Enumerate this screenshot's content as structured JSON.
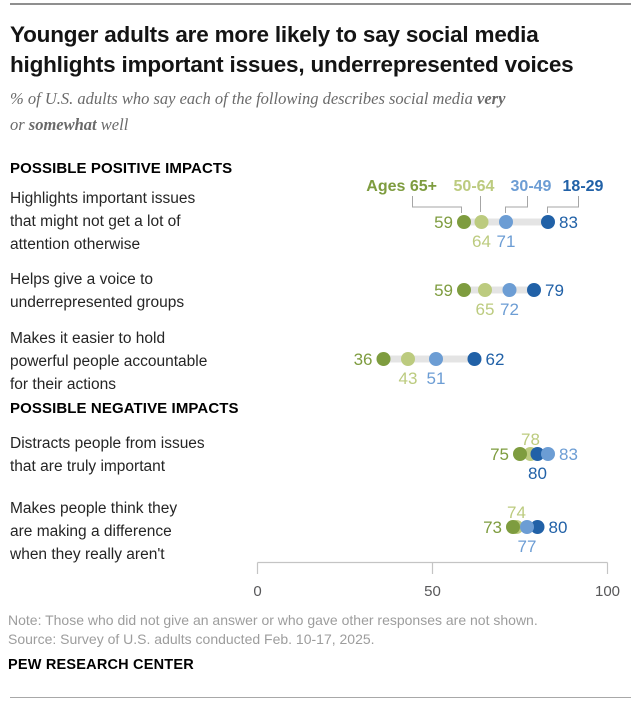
{
  "header": {
    "title": "Younger adults are more likely to say social media\nhighlights important issues, underrepresented voices",
    "subtitle": {
      "seg1": "% of U.S. adults who say each of the following describes social media ",
      "bold1": "very",
      "seg2": "or ",
      "bold2": "somewhat",
      "seg3": " well"
    }
  },
  "chart_data": {
    "type": "dot-plot",
    "unit": "% of U.S. adults",
    "axis": {
      "min": 0,
      "max": 100,
      "ticks": [
        0,
        50,
        100
      ]
    },
    "legend": {
      "prefix": "Ages",
      "position": "top-right",
      "groups": [
        {
          "label": "65+",
          "color": "#7e9c3f"
        },
        {
          "label": "50-64",
          "color": "#bccb7f"
        },
        {
          "label": "30-49",
          "color": "#6c9dd4"
        },
        {
          "label": "18-29",
          "color": "#2161a7"
        }
      ]
    },
    "connector_color": "#e4e4e4",
    "sections": [
      {
        "header": "POSSIBLE POSITIVE IMPACTS",
        "rows": [
          {
            "label": "Highlights important issues\nthat might not get a lot of\nattention otherwise",
            "values": [
              {
                "group": "65+",
                "value": 59,
                "label_pos": "left"
              },
              {
                "group": "50-64",
                "value": 64,
                "label_pos": "below"
              },
              {
                "group": "30-49",
                "value": 71,
                "label_pos": "below"
              },
              {
                "group": "18-29",
                "value": 83,
                "label_pos": "right"
              }
            ]
          },
          {
            "label": "Helps give a voice to\nunderrepresented groups",
            "values": [
              {
                "group": "65+",
                "value": 59,
                "label_pos": "left"
              },
              {
                "group": "50-64",
                "value": 65,
                "label_pos": "below"
              },
              {
                "group": "30-49",
                "value": 72,
                "label_pos": "below"
              },
              {
                "group": "18-29",
                "value": 79,
                "label_pos": "right"
              }
            ]
          },
          {
            "label": "Makes it easier to hold\npowerful people accountable\nfor their actions",
            "values": [
              {
                "group": "65+",
                "value": 36,
                "label_pos": "left"
              },
              {
                "group": "50-64",
                "value": 43,
                "label_pos": "below"
              },
              {
                "group": "30-49",
                "value": 51,
                "label_pos": "below"
              },
              {
                "group": "18-29",
                "value": 62,
                "label_pos": "right"
              }
            ]
          }
        ]
      },
      {
        "header": "POSSIBLE NEGATIVE IMPACTS",
        "rows": [
          {
            "label": "Distracts people from issues\nthat are truly important",
            "values": [
              {
                "group": "65+",
                "value": 75,
                "label_pos": "left"
              },
              {
                "group": "50-64",
                "value": 78,
                "label_pos": "above"
              },
              {
                "group": "30-49",
                "value": 83,
                "label_pos": "right"
              },
              {
                "group": "18-29",
                "value": 80,
                "label_pos": "below"
              }
            ]
          },
          {
            "label": "Makes people think they\nare making a difference\nwhen they really aren't",
            "values": [
              {
                "group": "65+",
                "value": 73,
                "label_pos": "left"
              },
              {
                "group": "50-64",
                "value": 74,
                "label_pos": "above"
              },
              {
                "group": "30-49",
                "value": 77,
                "label_pos": "below"
              },
              {
                "group": "18-29",
                "value": 80,
                "label_pos": "right"
              }
            ]
          }
        ]
      }
    ]
  },
  "footer": {
    "note": "Note: Those who did not give an answer or who gave other responses are not shown.\nSource: Survey of U.S. adults conducted Feb. 10-17, 2025.",
    "org": "PEW RESEARCH CENTER"
  }
}
